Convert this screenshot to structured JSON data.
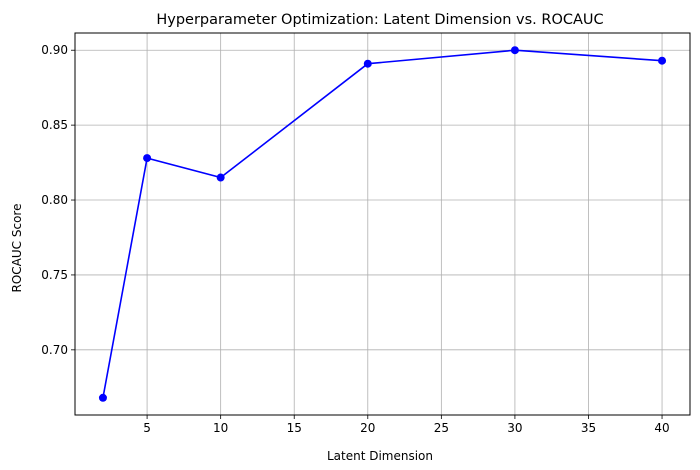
{
  "chart_data": {
    "type": "line",
    "title": "Hyperparameter Optimization: Latent Dimension vs. ROCAUC",
    "xlabel": "Latent Dimension",
    "ylabel": "ROCAUC Score",
    "x": [
      2,
      5,
      10,
      20,
      30,
      40
    ],
    "series": [
      {
        "values": [
          0.668,
          0.828,
          0.815,
          0.891,
          0.9,
          0.893
        ]
      }
    ],
    "xlim": [
      0.1,
      41.9
    ],
    "ylim": [
      0.6565,
      0.9115
    ],
    "xticks": [
      5,
      10,
      15,
      20,
      25,
      30,
      35,
      40
    ],
    "yticks": [
      0.7,
      0.75,
      0.8,
      0.85,
      0.9
    ],
    "xtick_labels": [
      "5",
      "10",
      "15",
      "20",
      "25",
      "30",
      "35",
      "40"
    ],
    "ytick_labels": [
      "0.70",
      "0.75",
      "0.80",
      "0.85",
      "0.90"
    ],
    "grid": true,
    "line_color": "#0000ff",
    "marker": "circle"
  }
}
